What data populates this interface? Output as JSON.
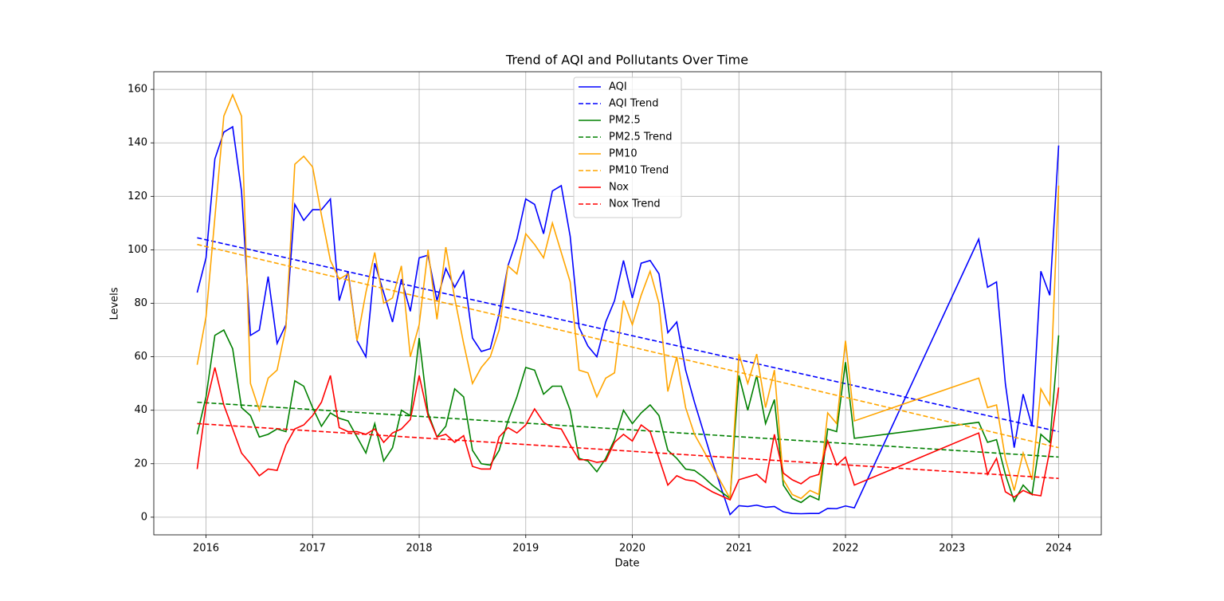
{
  "chart_data": {
    "type": "line",
    "title": "Trend of AQI and Pollutants Over Time",
    "xlabel": "Date",
    "ylabel": "Levels",
    "x": [
      2015.917,
      2016,
      2016.083,
      2016.167,
      2016.25,
      2016.333,
      2016.417,
      2016.5,
      2016.583,
      2016.667,
      2016.75,
      2016.833,
      2016.917,
      2017,
      2017.083,
      2017.167,
      2017.25,
      2017.333,
      2017.417,
      2017.5,
      2017.583,
      2017.667,
      2017.75,
      2017.833,
      2017.917,
      2018,
      2018.083,
      2018.167,
      2018.25,
      2018.333,
      2018.417,
      2018.5,
      2018.583,
      2018.667,
      2018.75,
      2018.833,
      2018.917,
      2019,
      2019.083,
      2019.167,
      2019.25,
      2019.333,
      2019.417,
      2019.5,
      2019.583,
      2019.667,
      2019.75,
      2019.833,
      2019.917,
      2020,
      2020.083,
      2020.167,
      2020.25,
      2020.333,
      2020.417,
      2020.5,
      2020.583,
      2020.667,
      2020.75,
      2020.833,
      2020.917,
      2021,
      2021.083,
      2021.167,
      2021.25,
      2021.333,
      2021.417,
      2021.5,
      2021.583,
      2021.667,
      2021.75,
      2021.833,
      2021.917,
      2022,
      2022.083,
      2023.25,
      2023.333,
      2023.417,
      2023.5,
      2023.583,
      2023.667,
      2023.75,
      2023.833,
      2023.917,
      2024
    ],
    "series": [
      {
        "name": "AQI",
        "color": "blue",
        "linestyle": "solid",
        "values": [
          84,
          97,
          134,
          144,
          146,
          122,
          68,
          70,
          90,
          65,
          72,
          117,
          111,
          115,
          115,
          119,
          81,
          92,
          66,
          60,
          95,
          84,
          73,
          89,
          77,
          97,
          98,
          81,
          93,
          86,
          92,
          67,
          62,
          63,
          76,
          94,
          104,
          119,
          117,
          106,
          122,
          124,
          105,
          71,
          64,
          60,
          73,
          81,
          96,
          82,
          95,
          96,
          91,
          69,
          73,
          55,
          43,
          32,
          21,
          11,
          1,
          4.3,
          4,
          4.5,
          3.7,
          4,
          2,
          1.4,
          1.3,
          1.4,
          1.4,
          3.3,
          3.2,
          4.2,
          3.5,
          104,
          86,
          88,
          50,
          26,
          46,
          34,
          92,
          83,
          139
        ]
      },
      {
        "name": "AQI Trend",
        "color": "blue",
        "linestyle": "dashed",
        "x": [
          2015.917,
          2024
        ],
        "values": [
          104.5,
          32
        ]
      },
      {
        "name": "PM2.5",
        "color": "green",
        "linestyle": "solid",
        "values": [
          31,
          45,
          68,
          70,
          63,
          41,
          38,
          30,
          31,
          33,
          32,
          51,
          49,
          41,
          34,
          39,
          37,
          36,
          30,
          24,
          35,
          21,
          26,
          40,
          38,
          67,
          39,
          30,
          34,
          48,
          45,
          25,
          20,
          19.5,
          25,
          36,
          45,
          56,
          55,
          46,
          49,
          49,
          40,
          22,
          21,
          17,
          22,
          29,
          40,
          35,
          39,
          42,
          38,
          25,
          22,
          18,
          17.5,
          15,
          12,
          9.5,
          7,
          53,
          40,
          53,
          35,
          44,
          12,
          7,
          5.5,
          8,
          6.5,
          33,
          32,
          58,
          29.5,
          35.5,
          28,
          29,
          16,
          6,
          12,
          8.5,
          31,
          28,
          68
        ]
      },
      {
        "name": "PM2.5 Trend",
        "color": "green",
        "linestyle": "dashed",
        "x": [
          2015.917,
          2024
        ],
        "values": [
          43,
          22.5
        ]
      },
      {
        "name": "PM10",
        "color": "orange",
        "linestyle": "solid",
        "values": [
          57,
          75,
          112,
          150,
          158,
          150,
          50,
          40,
          52,
          55,
          71,
          132,
          135,
          131,
          113,
          96,
          89,
          91,
          66,
          84,
          99,
          80,
          82,
          94,
          60,
          72,
          100,
          74,
          101,
          82,
          65,
          50,
          56,
          60,
          70,
          94,
          91,
          106,
          102,
          97,
          110,
          99,
          88,
          55,
          54,
          45,
          52,
          54,
          81,
          72,
          83,
          92,
          80,
          47,
          60,
          41,
          31,
          25,
          19,
          13,
          7,
          61,
          50,
          61,
          41,
          55,
          14,
          8.5,
          7,
          10,
          8.5,
          39,
          35,
          66,
          36,
          52,
          41,
          42,
          22,
          10,
          24,
          14,
          48,
          42,
          124
        ]
      },
      {
        "name": "PM10 Trend",
        "color": "orange",
        "linestyle": "dashed",
        "x": [
          2015.917,
          2024
        ],
        "values": [
          102,
          26
        ]
      },
      {
        "name": "Nox",
        "color": "red",
        "linestyle": "solid",
        "values": [
          18,
          42,
          56,
          42,
          33,
          24,
          20,
          15.5,
          18,
          17.5,
          27,
          33,
          34.5,
          38,
          43,
          53,
          33.5,
          32,
          32,
          31,
          33,
          28,
          31.5,
          33,
          36.5,
          53,
          38,
          30,
          31,
          28,
          30.5,
          19,
          18,
          18,
          30,
          33.5,
          31.5,
          34.5,
          40.5,
          35.5,
          33.5,
          33,
          27,
          21.5,
          21.5,
          20.5,
          21,
          28,
          31,
          28.5,
          34.5,
          32,
          22,
          12,
          15.5,
          14,
          13.5,
          11.5,
          9.5,
          8,
          6.5,
          14,
          15,
          16,
          13,
          31,
          16.5,
          14,
          12.5,
          15,
          16,
          28.5,
          19.5,
          22.5,
          12,
          31.5,
          16,
          22,
          9.5,
          7.5,
          10,
          8.5,
          8,
          25,
          48.5
        ]
      },
      {
        "name": "Nox Trend",
        "color": "red",
        "linestyle": "dashed",
        "x": [
          2015.917,
          2024
        ],
        "values": [
          35,
          14.5
        ]
      }
    ],
    "xlim": [
      2015.51,
      2024.4
    ],
    "xticks": [
      2016,
      2017,
      2018,
      2019,
      2020,
      2021,
      2022,
      2023,
      2024
    ],
    "ylim": [
      -6.6,
      166.6
    ],
    "yticks": [
      0,
      20,
      40,
      60,
      80,
      100,
      120,
      140,
      160
    ],
    "grid": true,
    "legend": "upper center"
  }
}
